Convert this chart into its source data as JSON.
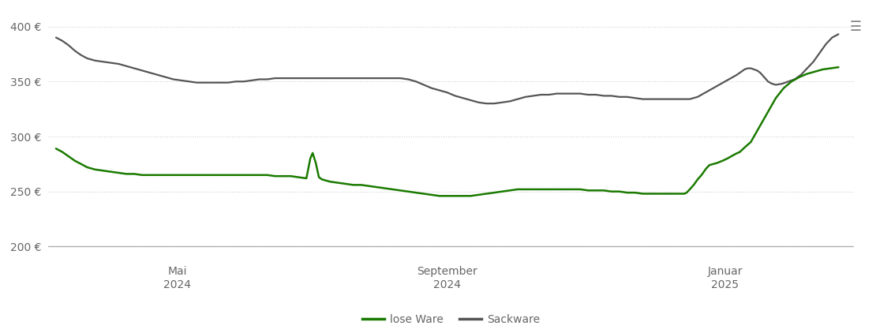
{
  "background_color": "#ffffff",
  "grid_color": "#d0d0d0",
  "lose_ware_color": "#1a7a00",
  "sackware_color": "#555555",
  "tick_label_color": "#666666",
  "yticks": [
    200,
    250,
    300,
    350,
    400
  ],
  "ytick_labels": [
    "200 €",
    "250 €",
    "300 €",
    "350 €",
    "400 €"
  ],
  "ylim": [
    188,
    415
  ],
  "legend_labels": [
    "lose Ware",
    "Sackware"
  ],
  "lose_ware_x": [
    0.0,
    0.008,
    0.016,
    0.024,
    0.032,
    0.04,
    0.05,
    0.06,
    0.07,
    0.08,
    0.09,
    0.1,
    0.11,
    0.12,
    0.13,
    0.14,
    0.15,
    0.16,
    0.17,
    0.18,
    0.19,
    0.2,
    0.21,
    0.22,
    0.23,
    0.24,
    0.25,
    0.26,
    0.27,
    0.28,
    0.29,
    0.3,
    0.31,
    0.32,
    0.325,
    0.328,
    0.332,
    0.336,
    0.34,
    0.345,
    0.35,
    0.36,
    0.37,
    0.38,
    0.39,
    0.4,
    0.41,
    0.42,
    0.43,
    0.44,
    0.45,
    0.46,
    0.47,
    0.48,
    0.49,
    0.5,
    0.51,
    0.52,
    0.53,
    0.54,
    0.55,
    0.56,
    0.57,
    0.58,
    0.59,
    0.6,
    0.61,
    0.62,
    0.63,
    0.64,
    0.65,
    0.66,
    0.67,
    0.68,
    0.69,
    0.7,
    0.71,
    0.72,
    0.73,
    0.74,
    0.75,
    0.76,
    0.77,
    0.78,
    0.79,
    0.795,
    0.8,
    0.803,
    0.806,
    0.81,
    0.815,
    0.82,
    0.825,
    0.828,
    0.831,
    0.835,
    0.84,
    0.845,
    0.852,
    0.858,
    0.863,
    0.868,
    0.874,
    0.88,
    0.888,
    0.896,
    0.904,
    0.912,
    0.92,
    0.93,
    0.94,
    0.95,
    0.96,
    0.97,
    0.98,
    0.99,
    1.0
  ],
  "lose_ware_y": [
    289,
    286,
    282,
    278,
    275,
    272,
    270,
    269,
    268,
    267,
    266,
    266,
    265,
    265,
    265,
    265,
    265,
    265,
    265,
    265,
    265,
    265,
    265,
    265,
    265,
    265,
    265,
    265,
    265,
    264,
    264,
    264,
    263,
    262,
    280,
    285,
    276,
    263,
    261,
    260,
    259,
    258,
    257,
    256,
    256,
    255,
    254,
    253,
    252,
    251,
    250,
    249,
    248,
    247,
    246,
    246,
    246,
    246,
    246,
    247,
    248,
    249,
    250,
    251,
    252,
    252,
    252,
    252,
    252,
    252,
    252,
    252,
    252,
    251,
    251,
    251,
    250,
    250,
    249,
    249,
    248,
    248,
    248,
    248,
    248,
    248,
    248,
    248,
    249,
    252,
    256,
    261,
    265,
    268,
    271,
    274,
    275,
    276,
    278,
    280,
    282,
    284,
    286,
    290,
    295,
    305,
    315,
    325,
    335,
    344,
    350,
    354,
    357,
    359,
    361,
    362,
    363
  ],
  "sackware_x": [
    0.0,
    0.008,
    0.016,
    0.024,
    0.032,
    0.04,
    0.05,
    0.06,
    0.07,
    0.08,
    0.09,
    0.1,
    0.11,
    0.12,
    0.13,
    0.14,
    0.15,
    0.16,
    0.17,
    0.18,
    0.19,
    0.2,
    0.21,
    0.22,
    0.23,
    0.24,
    0.25,
    0.26,
    0.27,
    0.28,
    0.29,
    0.3,
    0.31,
    0.32,
    0.33,
    0.34,
    0.35,
    0.36,
    0.37,
    0.38,
    0.39,
    0.4,
    0.41,
    0.42,
    0.43,
    0.44,
    0.45,
    0.46,
    0.47,
    0.48,
    0.49,
    0.5,
    0.51,
    0.52,
    0.53,
    0.54,
    0.55,
    0.56,
    0.57,
    0.58,
    0.59,
    0.6,
    0.61,
    0.62,
    0.63,
    0.64,
    0.65,
    0.66,
    0.67,
    0.68,
    0.69,
    0.7,
    0.71,
    0.72,
    0.73,
    0.74,
    0.75,
    0.76,
    0.77,
    0.78,
    0.79,
    0.8,
    0.81,
    0.82,
    0.83,
    0.84,
    0.85,
    0.86,
    0.87,
    0.876,
    0.88,
    0.884,
    0.888,
    0.892,
    0.896,
    0.9,
    0.905,
    0.91,
    0.915,
    0.92,
    0.928,
    0.936,
    0.944,
    0.952,
    0.96,
    0.968,
    0.976,
    0.984,
    0.992,
    1.0
  ],
  "sackware_y": [
    390,
    387,
    383,
    378,
    374,
    371,
    369,
    368,
    367,
    366,
    364,
    362,
    360,
    358,
    356,
    354,
    352,
    351,
    350,
    349,
    349,
    349,
    349,
    349,
    350,
    350,
    351,
    352,
    352,
    353,
    353,
    353,
    353,
    353,
    353,
    353,
    353,
    353,
    353,
    353,
    353,
    353,
    353,
    353,
    353,
    353,
    352,
    350,
    347,
    344,
    342,
    340,
    337,
    335,
    333,
    331,
    330,
    330,
    331,
    332,
    334,
    336,
    337,
    338,
    338,
    339,
    339,
    339,
    339,
    338,
    338,
    337,
    337,
    336,
    336,
    335,
    334,
    334,
    334,
    334,
    334,
    334,
    334,
    336,
    340,
    344,
    348,
    352,
    356,
    359,
    361,
    362,
    362,
    361,
    360,
    358,
    354,
    350,
    348,
    347,
    348,
    350,
    352,
    356,
    362,
    368,
    376,
    384,
    390,
    393
  ],
  "x_ticks": [
    0.155,
    0.5,
    0.855
  ],
  "x_tick_labels": [
    "Mai\n2024",
    "September\n2024",
    "Januar\n2025"
  ]
}
